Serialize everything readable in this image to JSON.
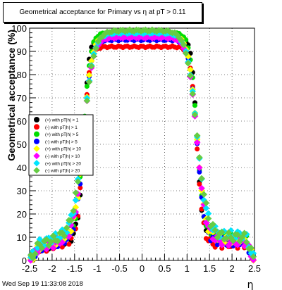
{
  "footer_date": "Wed Sep 19 11:33:08 2018",
  "chart_data": {
    "type": "scatter",
    "title": "Geometrical acceptance for Primary vs    η at pT > 0.11",
    "xlabel": "η",
    "ylabel": "Geometrical acceptance (%)",
    "xlim": [
      -2.5,
      2.5
    ],
    "ylim": [
      0,
      100
    ],
    "x_ticks": [
      "-2.5",
      "-2",
      "-1.5",
      "-1",
      "-0.5",
      "0",
      "0.5",
      "1",
      "1.5",
      "2",
      "2.5"
    ],
    "x_tick_values": [
      -2.5,
      -2,
      -1.5,
      -1,
      -0.5,
      0,
      0.5,
      1,
      1.5,
      2,
      2.5
    ],
    "y_ticks": [
      "0",
      "10",
      "20",
      "30",
      "40",
      "50",
      "60",
      "70",
      "80",
      "90",
      "100"
    ],
    "y_tick_values": [
      0,
      10,
      20,
      30,
      40,
      50,
      60,
      70,
      80,
      90,
      100
    ],
    "grid": true,
    "legend_position": "left",
    "series": [
      {
        "name": "(+) with pT|h| > 1",
        "color": "#000000",
        "marker": "circle",
        "plateau": 96,
        "tail": 9,
        "low": 10
      },
      {
        "name": "(-) with pT|h| > 1",
        "color": "#ff0000",
        "marker": "circle",
        "plateau": 92,
        "tail": 7,
        "low": 9
      },
      {
        "name": "(+) with pT|h| > 5",
        "color": "#00dd00",
        "marker": "circle",
        "plateau": 98,
        "tail": 10,
        "low": 12
      },
      {
        "name": "(-) with pT|h| > 5",
        "color": "#0000ff",
        "marker": "circle",
        "plateau": 95,
        "tail": 8,
        "low": 10
      },
      {
        "name": "(+) with pT|h| > 10",
        "color": "#ffff00",
        "marker": "diamond",
        "plateau": 97,
        "tail": 9,
        "low": 11
      },
      {
        "name": "(-) with pT|h| > 10",
        "color": "#ff00ff",
        "marker": "diamond",
        "plateau": 96,
        "tail": 8,
        "low": 10
      },
      {
        "name": "(+) with pT|h| > 20",
        "color": "#00e5ff",
        "marker": "diamond",
        "plateau": 98,
        "tail": 11,
        "low": 13
      },
      {
        "name": "(-) with pT|h| > 20",
        "color": "#66cc44",
        "marker": "diamond",
        "plateau": 99,
        "tail": 10,
        "low": 12
      }
    ]
  }
}
